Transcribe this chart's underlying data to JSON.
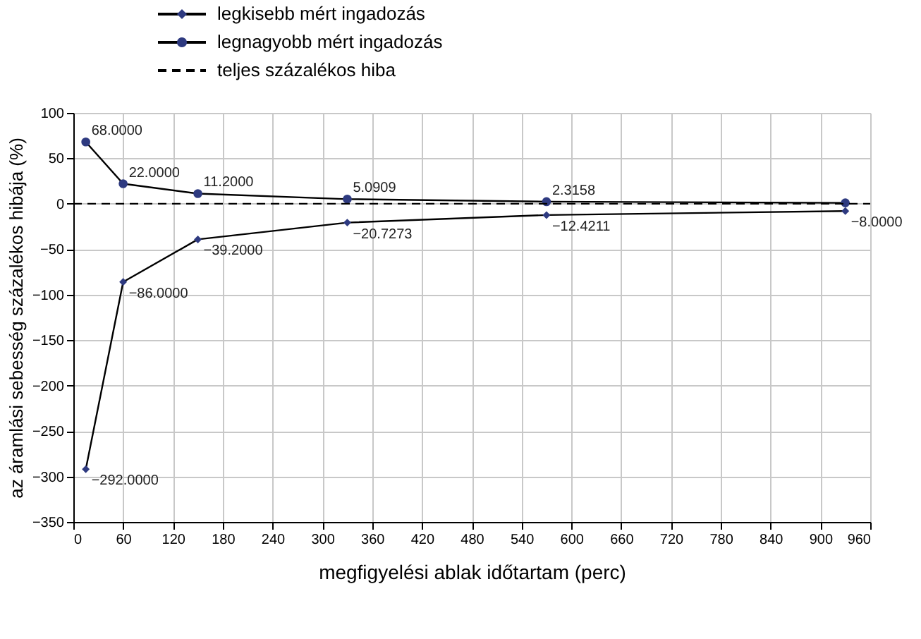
{
  "chart_data": {
    "type": "line",
    "xlabel": "megfigyelési ablak időtartam (perc)",
    "ylabel": "az áramlási sebesség százalékos hibája (%)",
    "x": [
      15,
      60,
      150,
      330,
      570,
      930
    ],
    "series": [
      {
        "name": "legkisebb mért ingadozás",
        "color": "#2e3a80",
        "marker": "diamond",
        "line_style": "solid",
        "values": [
          -292.0,
          -86.0,
          -39.2,
          -20.7273,
          -12.4211,
          -8.0
        ],
        "value_labels": [
          "−292.0000",
          "−86.0000",
          "−39.2000",
          "−20.7273",
          "−12.4211",
          "−8.0000"
        ]
      },
      {
        "name": "legnagyobb mért ingadozás",
        "color": "#2e3a80",
        "marker": "circle",
        "line_style": "solid",
        "values": [
          68.0,
          22.0,
          11.2,
          5.0909,
          2.3158,
          1.0
        ],
        "value_labels": [
          "68.0000",
          "22.0000",
          "11.2000",
          "5.0909",
          "2.3158",
          null
        ]
      },
      {
        "name": "teljes százalékos hiba",
        "color": "#000000",
        "marker": "none",
        "line_style": "dashed",
        "x": [
          0,
          960
        ],
        "values": [
          0,
          0
        ]
      }
    ],
    "xlim": [
      0,
      960
    ],
    "xticks": [
      0,
      60,
      120,
      180,
      240,
      300,
      360,
      420,
      480,
      540,
      600,
      660,
      720,
      780,
      840,
      900,
      960
    ],
    "ylim": [
      -350,
      100
    ],
    "yticks": [
      -350,
      -300,
      -250,
      -200,
      -150,
      -100,
      -50,
      0,
      50,
      100
    ],
    "grid": true,
    "legend": "top left"
  }
}
